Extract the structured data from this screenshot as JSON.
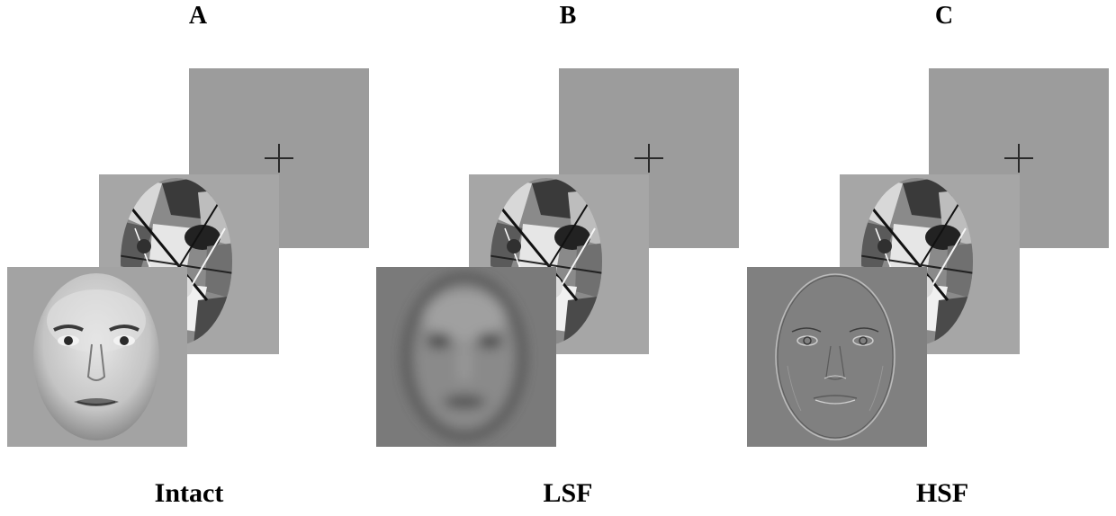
{
  "panels": [
    {
      "letter": "A",
      "condition": "Intact"
    },
    {
      "letter": "B",
      "condition": "LSF"
    },
    {
      "letter": "C",
      "condition": "HSF"
    }
  ],
  "colors": {
    "fixation_background": "#9c9c9c",
    "mask_background": "#a6a6a6",
    "intact_background": "#a3a3a3",
    "lsf_background": "#7a7a7a",
    "hsf_background": "#808080"
  }
}
